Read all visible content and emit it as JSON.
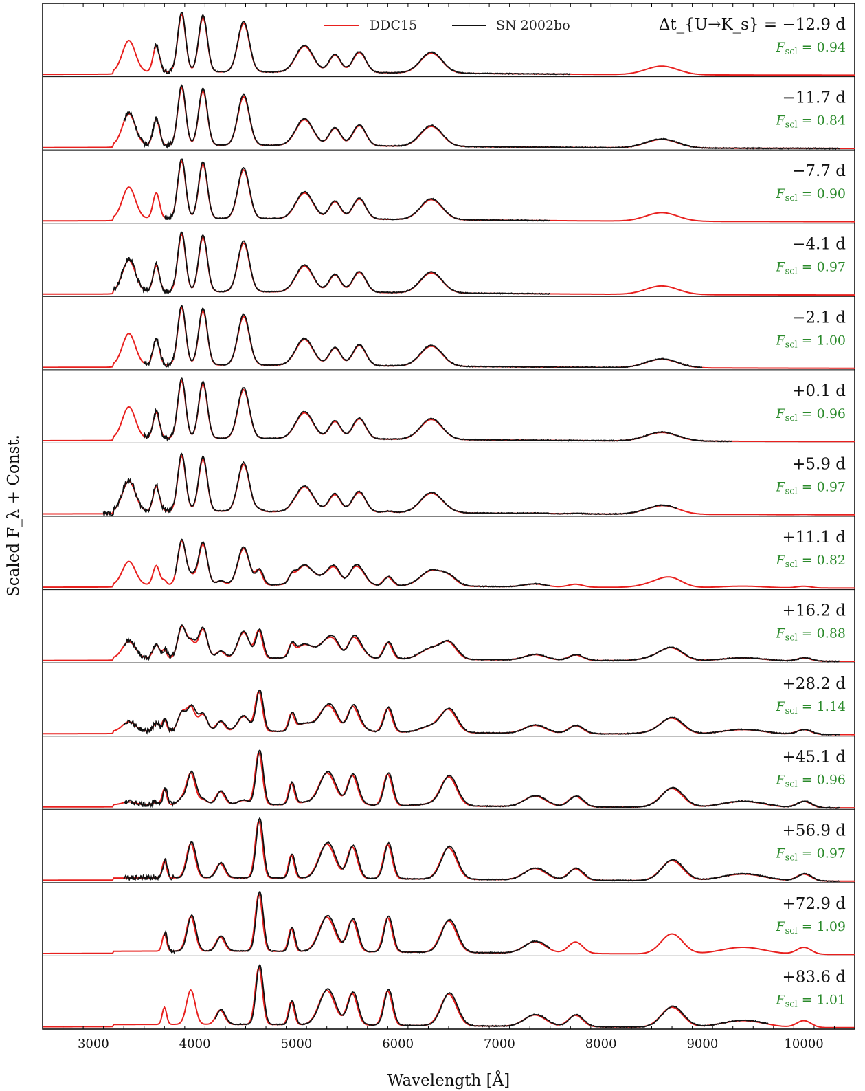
{
  "chart_data": {
    "type": "line",
    "title": "",
    "xlabel": "Wavelength [Å]",
    "ylabel": "Scaled F_λ + Const.",
    "xlim": [
      2500,
      10500
    ],
    "xticks": [
      3000,
      4000,
      5000,
      6000,
      7000,
      8000,
      9000,
      10000
    ],
    "grid": false,
    "legend": {
      "placement": "top-center",
      "entries": [
        {
          "name": "DDC15",
          "color": "#e8201e"
        },
        {
          "name": "SN 2002bo",
          "color": "#111111"
        }
      ]
    },
    "epoch_prefix": "Δt_{U→K_s} =",
    "series": [
      {
        "name": "DDC15",
        "color": "#e8201e"
      },
      {
        "name": "SN 2002bo",
        "color": "#111111"
      }
    ],
    "epochs": [
      {
        "label": "−12.9 d",
        "fscl": "0.94",
        "obs_range": [
          3600,
          7700
        ]
      },
      {
        "label": "−11.7 d",
        "fscl": "0.84",
        "obs_range": [
          3300,
          10350
        ]
      },
      {
        "label": "−7.7 d",
        "fscl": "0.90",
        "obs_range": [
          3700,
          7500
        ]
      },
      {
        "label": "−4.1 d",
        "fscl": "0.97",
        "obs_range": [
          3200,
          7500
        ]
      },
      {
        "label": "−2.1 d",
        "fscl": "1.00",
        "obs_range": [
          3500,
          9000
        ]
      },
      {
        "label": "+0.1 d",
        "fscl": "0.96",
        "obs_range": [
          3500,
          9300
        ]
      },
      {
        "label": "+5.9 d",
        "fscl": "0.97",
        "obs_range": [
          3100,
          8750
        ]
      },
      {
        "label": "+11.1 d",
        "fscl": "0.82",
        "obs_range": [
          3800,
          7500
        ]
      },
      {
        "label": "+16.2 d",
        "fscl": "0.88",
        "obs_range": [
          3300,
          10350
        ]
      },
      {
        "label": "+28.2 d",
        "fscl": "1.14",
        "obs_range": [
          3300,
          10350
        ]
      },
      {
        "label": "+45.1 d",
        "fscl": "0.96",
        "obs_range": [
          3300,
          10350
        ]
      },
      {
        "label": "+56.9 d",
        "fscl": "0.97",
        "obs_range": [
          3300,
          10350
        ]
      },
      {
        "label": "+72.9 d",
        "fscl": "1.09",
        "obs_range": [
          3700,
          7500
        ]
      },
      {
        "label": "+83.6 d",
        "fscl": "1.01",
        "obs_range": [
          4200,
          9650
        ]
      }
    ],
    "fscl_symbol": "F",
    "fscl_subscript": "scl",
    "fscl_color": "#2a8a2a"
  }
}
